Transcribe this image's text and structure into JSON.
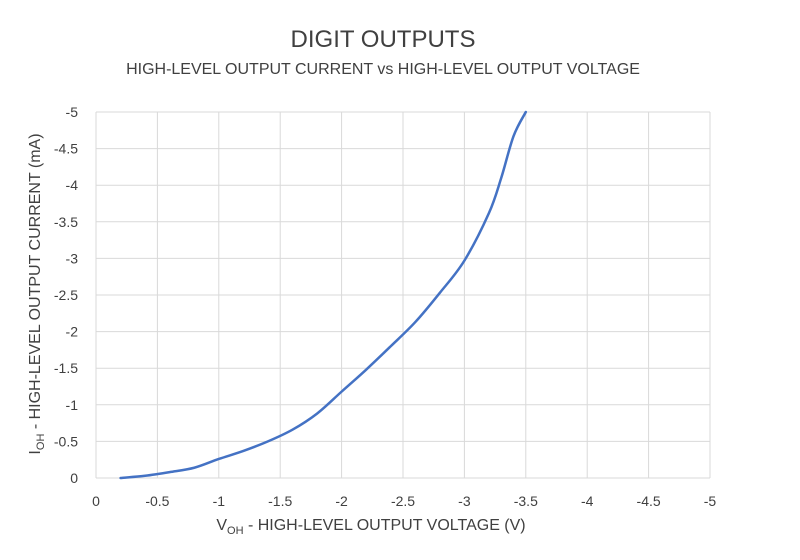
{
  "chart_data": {
    "type": "line",
    "title": "DIGIT OUTPUTS",
    "subtitle": "HIGH-LEVEL OUTPUT CURRENT vs HIGH-LEVEL OUTPUT VOLTAGE",
    "xlabel": {
      "prefix": "V",
      "subscript": "OH",
      "suffix": " - HIGH-LEVEL OUTPUT VOLTAGE (V)"
    },
    "ylabel": {
      "prefix": "I",
      "subscript": "OH",
      "suffix": " - HIGH-LEVEL OUTPUT CURRENT (mA)"
    },
    "xlim": [
      0,
      -5
    ],
    "ylim": [
      0,
      -5
    ],
    "x_ticks": [
      "0",
      "-0.5",
      "-1",
      "-1.5",
      "-2",
      "-2.5",
      "-3",
      "-3.5",
      "-4",
      "-4.5",
      "-5"
    ],
    "y_ticks": [
      "0",
      "-0.5",
      "-1",
      "-1.5",
      "-2",
      "-2.5",
      "-3",
      "-3.5",
      "-4",
      "-4.5",
      "-5"
    ],
    "x_tick_values": [
      0,
      -0.5,
      -1,
      -1.5,
      -2,
      -2.5,
      -3,
      -3.5,
      -4,
      -4.5,
      -5
    ],
    "y_tick_values": [
      0,
      -0.5,
      -1,
      -1.5,
      -2,
      -2.5,
      -3,
      -3.5,
      -4,
      -4.5,
      -5
    ],
    "grid": true,
    "series": [
      {
        "color": "#4472c4",
        "x": [
          -0.2,
          -0.4,
          -0.6,
          -0.8,
          -1.0,
          -1.2,
          -1.4,
          -1.6,
          -1.8,
          -2.0,
          -2.2,
          -2.4,
          -2.6,
          -2.8,
          -3.0,
          -3.2,
          -3.3,
          -3.4,
          -3.5
        ],
        "y": [
          0,
          -0.03,
          -0.08,
          -0.14,
          -0.26,
          -0.37,
          -0.5,
          -0.66,
          -0.88,
          -1.18,
          -1.48,
          -1.8,
          -2.13,
          -2.53,
          -2.97,
          -3.62,
          -4.1,
          -4.67,
          -5.0
        ]
      }
    ]
  }
}
